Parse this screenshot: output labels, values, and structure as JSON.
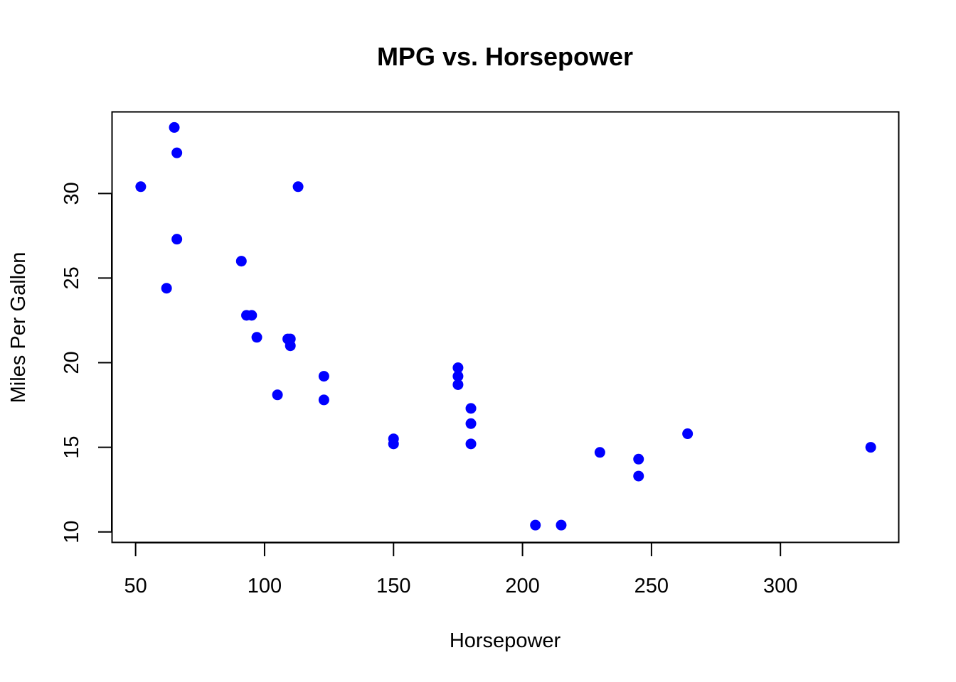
{
  "chart_data": {
    "type": "scatter",
    "title": "MPG vs. Horsepower",
    "xlabel": "Horsepower",
    "ylabel": "Miles Per Gallon",
    "xlim": [
      41,
      346
    ],
    "ylim": [
      9.4,
      34.8
    ],
    "x_ticks": [
      50,
      100,
      150,
      200,
      250,
      300
    ],
    "y_ticks": [
      10,
      15,
      20,
      25,
      30
    ],
    "grid": false,
    "legend": "none",
    "point_color": "#0000FF",
    "series": [
      {
        "points": [
          {
            "x": 110,
            "y": 21.0
          },
          {
            "x": 110,
            "y": 21.4
          },
          {
            "x": 109,
            "y": 21.4
          },
          {
            "x": 93,
            "y": 22.8
          },
          {
            "x": 95,
            "y": 22.8
          },
          {
            "x": 97,
            "y": 21.5
          },
          {
            "x": 175,
            "y": 18.7
          },
          {
            "x": 105,
            "y": 18.1
          },
          {
            "x": 245,
            "y": 14.3
          },
          {
            "x": 62,
            "y": 24.4
          },
          {
            "x": 123,
            "y": 19.2
          },
          {
            "x": 123,
            "y": 17.8
          },
          {
            "x": 180,
            "y": 16.4
          },
          {
            "x": 180,
            "y": 17.3
          },
          {
            "x": 180,
            "y": 15.2
          },
          {
            "x": 205,
            "y": 10.4
          },
          {
            "x": 215,
            "y": 10.4
          },
          {
            "x": 230,
            "y": 14.7
          },
          {
            "x": 66,
            "y": 32.4
          },
          {
            "x": 52,
            "y": 30.4
          },
          {
            "x": 65,
            "y": 33.9
          },
          {
            "x": 150,
            "y": 15.5
          },
          {
            "x": 150,
            "y": 15.2
          },
          {
            "x": 245,
            "y": 13.3
          },
          {
            "x": 175,
            "y": 19.2
          },
          {
            "x": 66,
            "y": 27.3
          },
          {
            "x": 91,
            "y": 26.0
          },
          {
            "x": 113,
            "y": 30.4
          },
          {
            "x": 264,
            "y": 15.8
          },
          {
            "x": 175,
            "y": 19.7
          },
          {
            "x": 335,
            "y": 15.0
          }
        ]
      }
    ]
  }
}
